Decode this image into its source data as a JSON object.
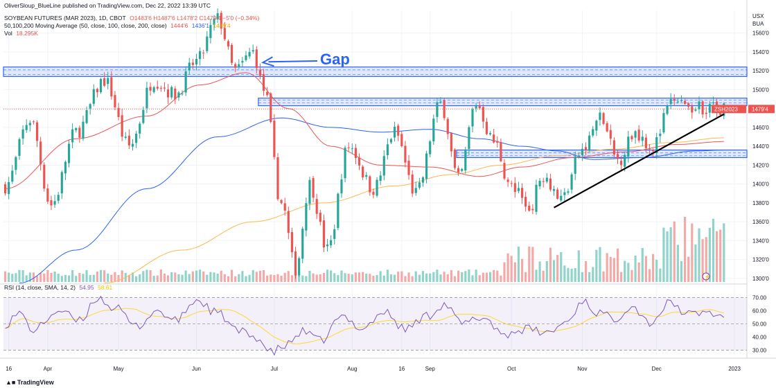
{
  "publisher_line": "OliverSloup_BlueLine published on TradingView.com, Dec 22, 2022 13:39 UTC",
  "header": {
    "symbol": "SOYBEAN FUTURES (MAR 2023), 1D, CBOT",
    "ohlc": "O1483'6  H1487'6  L1478'2  C1479'4  −5'0 (−0.34%)",
    "ma_title": "50,100,200 Moving Average (50, close, 100, close, 200, close)",
    "ma_values": [
      "1444'6",
      "1436'1",
      "1449'4"
    ],
    "vol_title": "Vol",
    "vol_value": "18.295K"
  },
  "rsi_header": {
    "title": "RSI (14, close, SMA, 14, 2)",
    "values": [
      "54.95",
      "58.61"
    ]
  },
  "axis_currency": [
    "USX",
    "BUA"
  ],
  "price_badge_symbol": "ZSH2023",
  "price_badge_value": "1479'4",
  "annotation_text": "Gap",
  "footer_brand": "TradingView",
  "colors": {
    "up": "#26a69a",
    "down": "#ef5350",
    "up_vol": "#8fd3c9",
    "down_vol": "#f4a9a7",
    "ma50": "#ef5350",
    "ma100": "#2962ff",
    "ma200": "#ffb74d",
    "zone": "#2962ff",
    "rsi": "#7e57c2",
    "rsi_ma": "#fdd835"
  },
  "chart_data": {
    "type": "candlestick",
    "title": "SOYBEAN FUTURES (MAR 2023), 1D, CBOT",
    "price_axis": {
      "ticks": [
        1300,
        1320,
        1340,
        1360,
        1380,
        1400,
        1420,
        1440,
        1460,
        1480,
        1500,
        1520,
        1540,
        1560
      ],
      "tick_labels": [
        "1300'0",
        "1320'0",
        "1340'0",
        "1360'0",
        "1380'0",
        "1400'0",
        "1420'0",
        "1440'0",
        "1460'0",
        "1480'0",
        "1500'0",
        "1520'0",
        "1540'0",
        "1560'0"
      ],
      "range": [
        1294,
        1584
      ]
    },
    "time_axis": {
      "labels": [
        "16",
        "Apr",
        "May",
        "Jun",
        "Jul",
        "Aug",
        "16",
        "Sep",
        "Oct",
        "Nov",
        "Dec",
        "2023"
      ],
      "label_index": [
        1,
        12,
        32,
        54,
        76,
        98,
        112,
        120,
        143,
        163,
        184,
        206
      ],
      "bar_count": 210
    },
    "zones": [
      {
        "from_index": 0,
        "to_index": 210,
        "low": 1514,
        "high": 1524,
        "dashed_levels": [
          1516,
          1521
        ]
      },
      {
        "from_index": 72,
        "to_index": 210,
        "low": 1483,
        "high": 1491,
        "dashed_levels": [
          1486,
          1489
        ]
      },
      {
        "from_index": 128,
        "to_index": 210,
        "low": 1428,
        "high": 1436,
        "dashed_levels": [
          1430,
          1433
        ]
      }
    ],
    "trendline": {
      "start": {
        "index": 155,
        "price": 1375
      },
      "end": {
        "index": 203,
        "price": 1474
      }
    },
    "gap_arrow": {
      "text": "Gap",
      "target": {
        "index": 72,
        "price": 1528
      }
    },
    "ohlc_keypoints": [
      [
        0,
        1398
      ],
      [
        7,
        1468
      ],
      [
        13,
        1378
      ],
      [
        20,
        1455
      ],
      [
        28,
        1510
      ],
      [
        35,
        1440
      ],
      [
        42,
        1510
      ],
      [
        48,
        1495
      ],
      [
        54,
        1530
      ],
      [
        60,
        1575
      ],
      [
        65,
        1520
      ],
      [
        70,
        1540
      ],
      [
        73,
        1500
      ],
      [
        78,
        1380
      ],
      [
        82,
        1310
      ],
      [
        86,
        1400
      ],
      [
        91,
        1330
      ],
      [
        97,
        1440
      ],
      [
        104,
        1395
      ],
      [
        110,
        1455
      ],
      [
        116,
        1390
      ],
      [
        123,
        1485
      ],
      [
        128,
        1405
      ],
      [
        133,
        1485
      ],
      [
        138,
        1445
      ],
      [
        143,
        1395
      ],
      [
        148,
        1375
      ],
      [
        152,
        1410
      ],
      [
        157,
        1385
      ],
      [
        163,
        1435
      ],
      [
        168,
        1470
      ],
      [
        173,
        1425
      ],
      [
        178,
        1455
      ],
      [
        183,
        1440
      ],
      [
        188,
        1485
      ],
      [
        194,
        1480
      ],
      [
        198,
        1482
      ],
      [
        203,
        1480
      ]
    ],
    "rsi_axis": {
      "ticks": [
        30,
        40,
        50,
        60,
        70
      ],
      "tick_labels": [
        "30.00",
        "40.00",
        "50.00",
        "60.00",
        "70.00"
      ],
      "range": [
        26,
        74
      ],
      "band": [
        30,
        70
      ]
    },
    "rsi_keypoints": [
      [
        0,
        50
      ],
      [
        4,
        58
      ],
      [
        8,
        45
      ],
      [
        15,
        60
      ],
      [
        21,
        52
      ],
      [
        26,
        70
      ],
      [
        31,
        62
      ],
      [
        37,
        48
      ],
      [
        43,
        60
      ],
      [
        48,
        52
      ],
      [
        54,
        68
      ],
      [
        60,
        58
      ],
      [
        66,
        44
      ],
      [
        71,
        40
      ],
      [
        75,
        28
      ],
      [
        79,
        33
      ],
      [
        84,
        44
      ],
      [
        89,
        37
      ],
      [
        95,
        55
      ],
      [
        101,
        47
      ],
      [
        107,
        59
      ],
      [
        113,
        46
      ],
      [
        119,
        56
      ],
      [
        124,
        65
      ],
      [
        129,
        50
      ],
      [
        135,
        55
      ],
      [
        141,
        42
      ],
      [
        147,
        46
      ],
      [
        153,
        43
      ],
      [
        159,
        52
      ],
      [
        163,
        68
      ],
      [
        167,
        59
      ],
      [
        172,
        54
      ],
      [
        177,
        64
      ],
      [
        182,
        51
      ],
      [
        188,
        66
      ],
      [
        193,
        57
      ],
      [
        198,
        59
      ],
      [
        203,
        55
      ]
    ],
    "ma50_keypoints": [
      [
        0,
        1395
      ],
      [
        20,
        1448
      ],
      [
        40,
        1472
      ],
      [
        55,
        1505
      ],
      [
        68,
        1518
      ],
      [
        80,
        1480
      ],
      [
        92,
        1440
      ],
      [
        106,
        1420
      ],
      [
        120,
        1418
      ],
      [
        134,
        1408
      ],
      [
        146,
        1418
      ],
      [
        160,
        1428
      ],
      [
        175,
        1434
      ],
      [
        190,
        1442
      ],
      [
        203,
        1445
      ]
    ],
    "ma100_keypoints": [
      [
        4,
        1295
      ],
      [
        20,
        1330
      ],
      [
        40,
        1395
      ],
      [
        60,
        1450
      ],
      [
        78,
        1470
      ],
      [
        92,
        1460
      ],
      [
        106,
        1455
      ],
      [
        120,
        1458
      ],
      [
        134,
        1448
      ],
      [
        146,
        1440
      ],
      [
        156,
        1435
      ],
      [
        166,
        1426
      ],
      [
        180,
        1428
      ],
      [
        195,
        1435
      ],
      [
        203,
        1436
      ]
    ],
    "ma200_keypoints": [
      [
        28,
        1295
      ],
      [
        50,
        1330
      ],
      [
        70,
        1360
      ],
      [
        90,
        1380
      ],
      [
        110,
        1398
      ],
      [
        126,
        1410
      ],
      [
        140,
        1420
      ],
      [
        156,
        1430
      ],
      [
        172,
        1437
      ],
      [
        188,
        1444
      ],
      [
        203,
        1449
      ]
    ]
  }
}
